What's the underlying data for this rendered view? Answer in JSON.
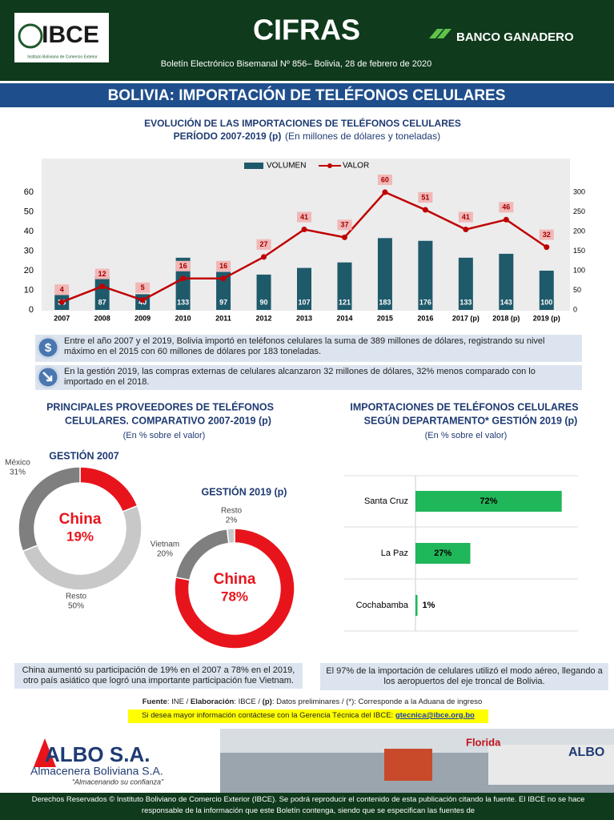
{
  "header": {
    "logo": "IBCE",
    "logo_caption": "Instituto Boliviano de Comercio Exterior",
    "title": "CIFRAS",
    "bulletin": "Boletín Electrónico Bisemanal Nº 856– Bolivia, 28 de febrero de 2020",
    "sponsor": "BANCO GANADERO"
  },
  "banner": "BOLIVIA: IMPORTACIÓN DE TELÉFONOS CELULARES",
  "chart_data": [
    {
      "type": "combo",
      "title": [
        "EVOLUCIÓN DE LAS IMPORTACIONES DE TELÉFONOS CELULARES",
        "PERÍODO 2007-2019 (p)"
      ],
      "subtitle": "(En millones de dólares y toneladas)",
      "categories": [
        "2007",
        "2008",
        "2009",
        "2010",
        "2011",
        "2012",
        "2013",
        "2014",
        "2015",
        "2016",
        "2017 (p)",
        "2018 (p)",
        "2019 (p)"
      ],
      "series": [
        {
          "name": "VOLUMEN",
          "type": "bar",
          "color": "#1f5a6b",
          "axis": "y2",
          "values": [
            38,
            87,
            40,
            133,
            97,
            90,
            107,
            121,
            183,
            176,
            133,
            143,
            100
          ]
        },
        {
          "name": "VALOR",
          "type": "line",
          "color": "#c00000",
          "values": [
            4,
            12,
            5,
            16,
            16,
            27,
            41,
            37,
            60,
            51,
            41,
            46,
            32
          ]
        }
      ],
      "ylim": [
        0,
        60
      ],
      "yticks": [
        0,
        10,
        20,
        30,
        40,
        50,
        60
      ],
      "y2lim": [
        0,
        300
      ],
      "y2ticks": [
        0,
        50,
        100,
        150,
        200,
        250,
        300
      ],
      "legend": "top"
    },
    {
      "type": "donut",
      "title": "GESTIÓN 2007",
      "categories": [
        "China",
        "Resto",
        "México"
      ],
      "values": [
        19,
        50,
        31
      ],
      "value_labels": [
        "19%",
        "50%",
        "31%"
      ],
      "colors": [
        "#e8141c",
        "#c8c8c8",
        "#7f7f7f"
      ]
    },
    {
      "type": "donut",
      "title": "GESTIÓN 2019 (p)",
      "categories": [
        "China",
        "Vietnam",
        "Resto"
      ],
      "values": [
        78,
        20,
        2
      ],
      "value_labels": [
        "78%",
        "20%",
        "2%"
      ],
      "colors": [
        "#e8141c",
        "#7f7f7f",
        "#c8c8c8"
      ]
    },
    {
      "type": "hbar",
      "title": [
        "IMPORTACIONES DE TELÉFONOS CELULARES",
        "SEGÚN DEPARTAMENTO* GESTIÓN 2019 (p)"
      ],
      "subtitle": "(En % sobre el valor)",
      "categories": [
        "Santa Cruz",
        "La Paz",
        "Cochabamba"
      ],
      "values": [
        72,
        27,
        1
      ],
      "value_labels": [
        "72%",
        "27%",
        "1%"
      ],
      "color": "#20b65a",
      "xlim": [
        0,
        80
      ]
    }
  ],
  "suppliers_section": {
    "title": [
      "PRINCIPALES PROVEEDORES DE TELÉFONOS",
      "CELULARES. COMPARATIVO 2007-2019 (p)"
    ],
    "subtitle": "(En % sobre el valor)"
  },
  "notes": [
    "Entre el año 2007 y el 2019, Bolivia importó en teléfonos celulares la suma de 389 millones de dólares, registrando su nivel máximo en el 2015 con 60 millones de dólares por 183 toneladas.",
    "En la gestión 2019, las compras externas de celulares alcanzaron 32 millones de dólares, 32% menos comparado con lo importado en el 2018."
  ],
  "captions": [
    "China aumentó su participación de 19% en el 2007 a 78% en el 2019, otro país asiático que logró una importante participación fue Vietnam.",
    "El 97% de la importación de celulares utilizó el modo aéreo, llegando a los aeropuertos del eje troncal de Bolivia."
  ],
  "source": [
    "Fuente",
    ": INE / ",
    "Elaboración",
    ": IBCE / ",
    "(p)",
    ": Datos preliminares / (*): Corresponde a la Aduana de ingreso"
  ],
  "contact": {
    "text": "Si desea mayor información contáctese con la Gerencia Técnica del IBCE:",
    "email": "gtecnica@ibce.org.bo"
  },
  "ad": {
    "brand": "ALBO S.A.",
    "name": "Almacenera Boliviana S.A.",
    "slogan": "“Almacenando su confianza”",
    "signs": [
      "Florida",
      "ALBO"
    ]
  },
  "footer": "Derechos Reservados © Instituto Boliviano de Comercio Exterior (IBCE). Se podrá reproducir el contenido de esta publicación citando la fuente. El IBCE no se hace responsable de la información que este Boletín contenga, siendo que se especifican las fuentes de"
}
